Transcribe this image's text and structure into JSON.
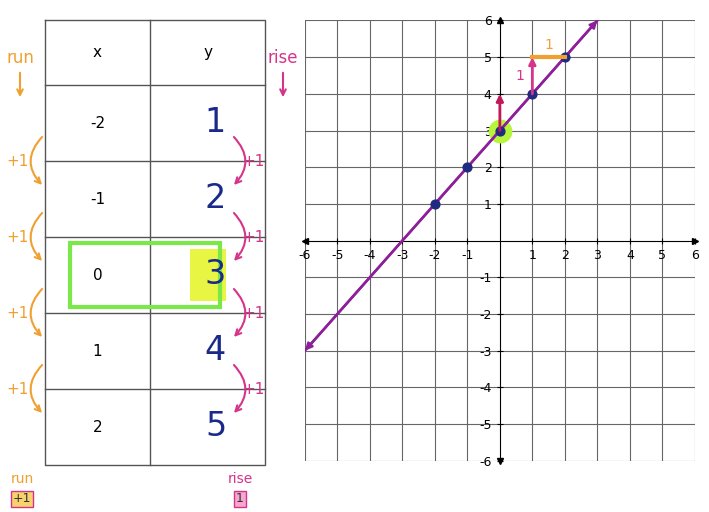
{
  "table": {
    "columns": [
      "x",
      "y"
    ],
    "rows": [
      [
        -2,
        1
      ],
      [
        -1,
        2
      ],
      [
        0,
        3
      ],
      [
        1,
        4
      ],
      [
        2,
        5
      ]
    ]
  },
  "annotations": {
    "run": "run",
    "rise": "rise",
    "run_steps": [
      "+1",
      "+1",
      "+1",
      "+1"
    ],
    "rise_steps": [
      "+1",
      "+1",
      "+1",
      "+1"
    ],
    "run_total": "+1",
    "rise_total": "1"
  },
  "chart_data": {
    "type": "scatter",
    "series": [
      {
        "type": "scatter",
        "x": [
          -2,
          -1,
          0,
          1,
          2
        ],
        "values": [
          1,
          2,
          3,
          4,
          5
        ],
        "color": "#1f2a80",
        "marker": "o"
      },
      {
        "type": "line",
        "x": [
          -6,
          3
        ],
        "values": [
          -3,
          6
        ],
        "color": "#8e1f9a",
        "line_style": "solid"
      }
    ],
    "slope": {
      "rise": 1,
      "run": 1
    },
    "xlim": [
      -6,
      6
    ],
    "ylim": [
      -6,
      6
    ],
    "xticks": [
      -6,
      -5,
      -4,
      -3,
      -2,
      -1,
      1,
      2,
      3,
      4,
      5,
      6
    ],
    "yticks": [
      -6,
      -5,
      -4,
      -3,
      -2,
      -1,
      1,
      2,
      3,
      4,
      5,
      6
    ],
    "grid": true
  }
}
